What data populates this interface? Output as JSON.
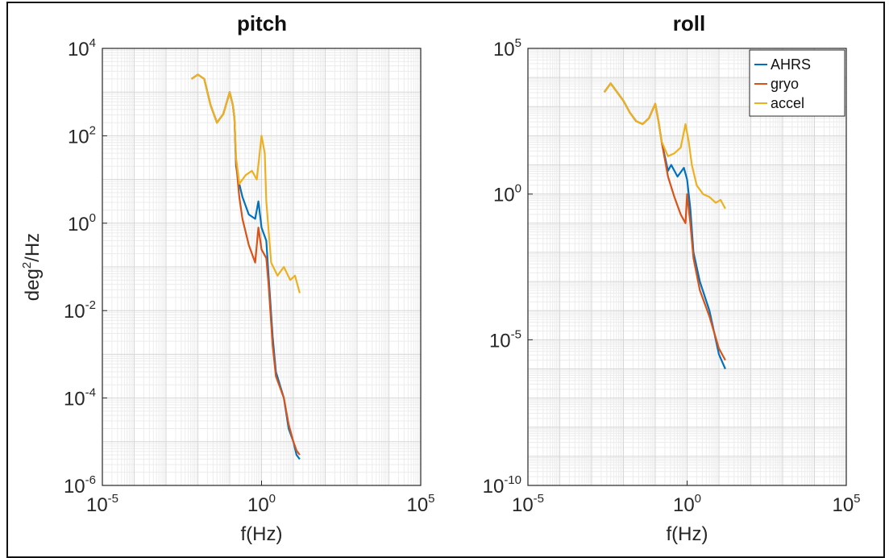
{
  "chart_data": [
    {
      "type": "line",
      "title": "pitch",
      "xlabel": "f(Hz)",
      "ylabel_base": "deg",
      "ylabel_sup": "2",
      "ylabel_rest": "/Hz",
      "xscale": "log",
      "yscale": "log",
      "xlim_exp": [
        -5,
        5
      ],
      "ylim_exp": [
        -6,
        4
      ],
      "x_ticks": [
        {
          "base": "10",
          "exp": "-5"
        },
        {
          "base": "10",
          "exp": "0"
        },
        {
          "base": "10",
          "exp": "5"
        }
      ],
      "y_ticks": [
        {
          "base": "10",
          "exp": "4"
        },
        {
          "base": "10",
          "exp": "2"
        },
        {
          "base": "10",
          "exp": "0"
        },
        {
          "base": "10",
          "exp": "-2"
        },
        {
          "base": "10",
          "exp": "-4"
        },
        {
          "base": "10",
          "exp": "-6"
        }
      ],
      "grid": true,
      "series": [
        {
          "name": "AHRS",
          "color": "#0072BD",
          "points": [
            [
              -2.2,
              3.3
            ],
            [
              -2.0,
              3.4
            ],
            [
              -1.8,
              3.3
            ],
            [
              -1.6,
              2.7
            ],
            [
              -1.4,
              2.3
            ],
            [
              -1.2,
              2.5
            ],
            [
              -1.0,
              3.0
            ],
            [
              -0.9,
              2.7
            ],
            [
              -0.85,
              2.4
            ],
            [
              -0.8,
              1.3
            ],
            [
              -0.7,
              0.9
            ],
            [
              -0.6,
              0.6
            ],
            [
              -0.4,
              0.2
            ],
            [
              -0.2,
              0.1
            ],
            [
              -0.1,
              0.5
            ],
            [
              0.0,
              -0.1
            ],
            [
              0.15,
              -0.4
            ],
            [
              0.22,
              -1.2
            ],
            [
              0.35,
              -2.6
            ],
            [
              0.45,
              -3.4
            ],
            [
              0.7,
              -4.0
            ],
            [
              0.85,
              -4.7
            ],
            [
              1.0,
              -5.0
            ],
            [
              1.1,
              -5.3
            ],
            [
              1.2,
              -5.4
            ]
          ]
        },
        {
          "name": "gryo",
          "color": "#D95319",
          "points": [
            [
              -2.2,
              3.3
            ],
            [
              -2.0,
              3.4
            ],
            [
              -1.8,
              3.3
            ],
            [
              -1.6,
              2.7
            ],
            [
              -1.4,
              2.3
            ],
            [
              -1.2,
              2.5
            ],
            [
              -1.0,
              3.0
            ],
            [
              -0.9,
              2.7
            ],
            [
              -0.85,
              2.4
            ],
            [
              -0.8,
              1.4
            ],
            [
              -0.7,
              0.6
            ],
            [
              -0.6,
              0.1
            ],
            [
              -0.4,
              -0.5
            ],
            [
              -0.2,
              -0.9
            ],
            [
              -0.1,
              -0.1
            ],
            [
              0.0,
              -0.6
            ],
            [
              0.15,
              -0.8
            ],
            [
              0.22,
              -1.4
            ],
            [
              0.35,
              -2.8
            ],
            [
              0.45,
              -3.5
            ],
            [
              0.7,
              -4.0
            ],
            [
              0.85,
              -4.6
            ],
            [
              1.0,
              -5.0
            ],
            [
              1.1,
              -5.2
            ],
            [
              1.2,
              -5.3
            ]
          ]
        },
        {
          "name": "accel",
          "color": "#EDB120",
          "points": [
            [
              -2.2,
              3.3
            ],
            [
              -2.0,
              3.4
            ],
            [
              -1.8,
              3.3
            ],
            [
              -1.6,
              2.7
            ],
            [
              -1.4,
              2.3
            ],
            [
              -1.2,
              2.5
            ],
            [
              -1.0,
              3.0
            ],
            [
              -0.9,
              2.7
            ],
            [
              -0.85,
              2.4
            ],
            [
              -0.8,
              1.5
            ],
            [
              -0.7,
              0.9
            ],
            [
              -0.5,
              1.1
            ],
            [
              -0.3,
              1.2
            ],
            [
              -0.15,
              1.0
            ],
            [
              0.0,
              2.0
            ],
            [
              0.1,
              1.6
            ],
            [
              0.15,
              0.5
            ],
            [
              0.3,
              -0.9
            ],
            [
              0.5,
              -1.2
            ],
            [
              0.7,
              -1.0
            ],
            [
              0.9,
              -1.3
            ],
            [
              1.05,
              -1.2
            ],
            [
              1.2,
              -1.6
            ]
          ]
        }
      ]
    },
    {
      "type": "line",
      "title": "roll",
      "xlabel": "f(Hz)",
      "xscale": "log",
      "yscale": "log",
      "xlim_exp": [
        -5,
        5
      ],
      "ylim_exp": [
        -10,
        5
      ],
      "x_ticks": [
        {
          "base": "10",
          "exp": "-5"
        },
        {
          "base": "10",
          "exp": "0"
        },
        {
          "base": "10",
          "exp": "5"
        }
      ],
      "y_ticks": [
        {
          "base": "10",
          "exp": "5"
        },
        {
          "base": "10",
          "exp": "0"
        },
        {
          "base": "10",
          "exp": "-5"
        },
        {
          "base": "10",
          "exp": "-10"
        }
      ],
      "grid": true,
      "legend": "top-right",
      "series": [
        {
          "name": "AHRS",
          "color": "#0072BD",
          "points": [
            [
              -2.6,
              3.5
            ],
            [
              -2.4,
              3.8
            ],
            [
              -2.2,
              3.5
            ],
            [
              -2.0,
              3.2
            ],
            [
              -1.8,
              2.8
            ],
            [
              -1.6,
              2.5
            ],
            [
              -1.4,
              2.4
            ],
            [
              -1.2,
              2.6
            ],
            [
              -1.0,
              3.1
            ],
            [
              -0.9,
              2.5
            ],
            [
              -0.8,
              1.8
            ],
            [
              -0.6,
              0.8
            ],
            [
              -0.5,
              1.0
            ],
            [
              -0.3,
              0.6
            ],
            [
              -0.1,
              0.9
            ],
            [
              0.0,
              0.5
            ],
            [
              0.1,
              -0.5
            ],
            [
              0.2,
              -2.0
            ],
            [
              0.4,
              -3.0
            ],
            [
              0.7,
              -4.0
            ],
            [
              1.0,
              -5.5
            ],
            [
              1.2,
              -6.0
            ]
          ]
        },
        {
          "name": "gryo",
          "color": "#D95319",
          "points": [
            [
              -2.6,
              3.5
            ],
            [
              -2.4,
              3.8
            ],
            [
              -2.2,
              3.5
            ],
            [
              -2.0,
              3.2
            ],
            [
              -1.8,
              2.8
            ],
            [
              -1.6,
              2.5
            ],
            [
              -1.4,
              2.4
            ],
            [
              -1.2,
              2.6
            ],
            [
              -1.0,
              3.1
            ],
            [
              -0.9,
              2.5
            ],
            [
              -0.8,
              1.8
            ],
            [
              -0.6,
              0.6
            ],
            [
              -0.4,
              -0.1
            ],
            [
              -0.2,
              -0.7
            ],
            [
              -0.05,
              -1.0
            ],
            [
              0.0,
              0.0
            ],
            [
              0.1,
              -1.0
            ],
            [
              0.2,
              -2.2
            ],
            [
              0.4,
              -3.3
            ],
            [
              0.7,
              -4.2
            ],
            [
              1.0,
              -5.3
            ],
            [
              1.2,
              -5.7
            ]
          ]
        },
        {
          "name": "accel",
          "color": "#EDB120",
          "points": [
            [
              -2.6,
              3.5
            ],
            [
              -2.4,
              3.8
            ],
            [
              -2.2,
              3.5
            ],
            [
              -2.0,
              3.2
            ],
            [
              -1.8,
              2.8
            ],
            [
              -1.6,
              2.5
            ],
            [
              -1.4,
              2.4
            ],
            [
              -1.2,
              2.6
            ],
            [
              -1.0,
              3.1
            ],
            [
              -0.9,
              2.5
            ],
            [
              -0.8,
              1.8
            ],
            [
              -0.6,
              1.3
            ],
            [
              -0.4,
              1.4
            ],
            [
              -0.2,
              1.6
            ],
            [
              -0.05,
              2.4
            ],
            [
              0.05,
              1.8
            ],
            [
              0.15,
              1.0
            ],
            [
              0.3,
              0.3
            ],
            [
              0.5,
              0.0
            ],
            [
              0.7,
              -0.1
            ],
            [
              0.9,
              -0.3
            ],
            [
              1.05,
              -0.2
            ],
            [
              1.2,
              -0.5
            ]
          ]
        }
      ]
    }
  ]
}
